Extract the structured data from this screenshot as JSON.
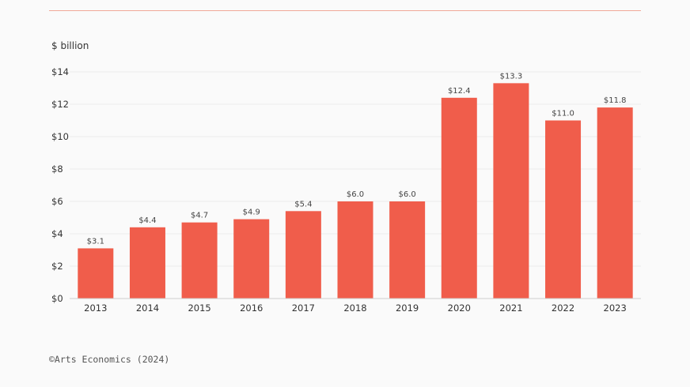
{
  "chart_data": {
    "type": "bar",
    "unit_label": "$ billion",
    "categories": [
      "2013",
      "2014",
      "2015",
      "2016",
      "2017",
      "2018",
      "2019",
      "2020",
      "2021",
      "2022",
      "2023"
    ],
    "values": [
      3.1,
      4.4,
      4.7,
      4.9,
      5.4,
      6.0,
      6.0,
      12.4,
      13.3,
      11.0,
      11.8
    ],
    "value_labels": [
      "$3.1",
      "$4.4",
      "$4.7",
      "$4.9",
      "$5.4",
      "$6.0",
      "$6.0",
      "$12.4",
      "$13.3",
      "$11.0",
      "$11.8"
    ],
    "y_ticks": [
      0,
      2,
      4,
      6,
      8,
      10,
      12,
      14
    ],
    "y_tick_labels": [
      "$0",
      "$2",
      "$4",
      "$6",
      "$8",
      "$10",
      "$12",
      "$14"
    ],
    "ylim": [
      0,
      14
    ],
    "grid": true,
    "bar_color": "#f05d4b"
  },
  "source": "©Arts Economics (2024)"
}
